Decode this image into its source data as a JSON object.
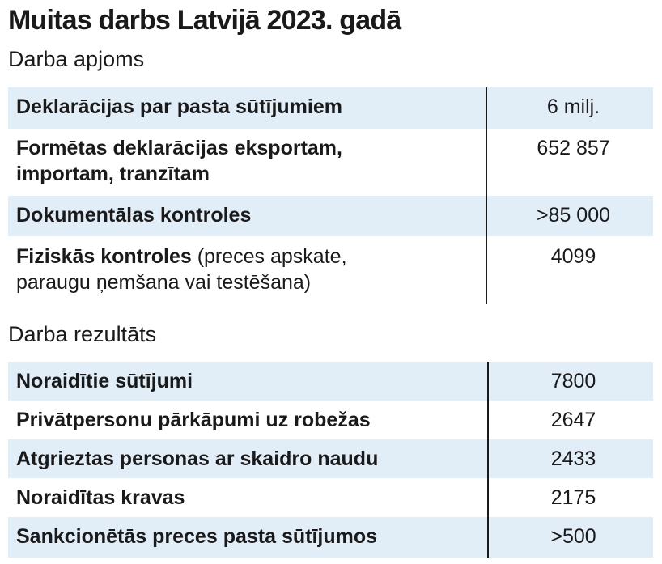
{
  "title": "Muitas darbs Latvijā 2023. gadā",
  "section1": {
    "heading": "Darba apjoms",
    "rows": [
      {
        "label_bold": "Deklarācijas par pasta sūtījumiem",
        "label_normal": "",
        "value": "6 milj."
      },
      {
        "label_bold": "Formētas deklarācijas eksportam,",
        "label_bold2": "importam, tranzītam",
        "value": "652 857"
      },
      {
        "label_bold": "Dokumentālas kontroles",
        "label_normal": "",
        "value": ">85 000"
      },
      {
        "label_bold": "Fiziskās kontroles",
        "label_normal": " (preces apskate,",
        "label_line2": "paraugu ņemšana vai testēšana)",
        "value": "4099"
      }
    ]
  },
  "section2": {
    "heading": "Darba rezultāts",
    "rows": [
      {
        "label_bold": "Noraidītie sūtījumi",
        "value": "7800"
      },
      {
        "label_bold": "Privātpersonu pārkāpumi uz robežas",
        "value": "2647"
      },
      {
        "label_bold": "Atgrieztas personas ar skaidro naudu",
        "value": "2433"
      },
      {
        "label_bold": "Noraidītas kravas",
        "value": "2175"
      },
      {
        "label_bold": "Sankcionētās preces pasta sūtījumos",
        "value": ">500"
      }
    ]
  },
  "colors": {
    "shade": "#e1eef8",
    "text": "#1a1a1a"
  }
}
